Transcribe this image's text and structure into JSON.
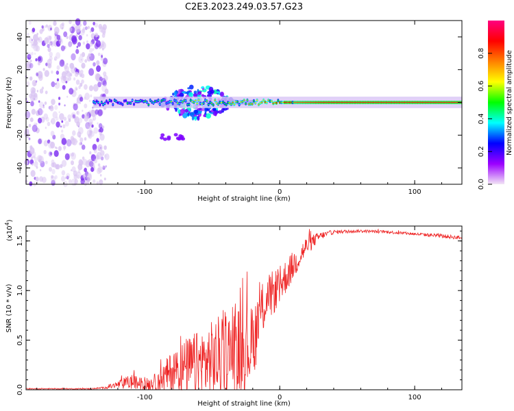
{
  "title": "C2E3.2023.249.03.57.G23",
  "chart_data": [
    {
      "type": "heatmap",
      "name": "spectrogram",
      "xlabel": "Height of straight line (km)",
      "ylabel": "Frequency (Hz)",
      "xlim": [
        -188,
        135
      ],
      "ylim": [
        -50,
        50
      ],
      "xticks": [
        -100,
        0,
        100
      ],
      "xtick_labels": [
        "-100",
        "0",
        "100"
      ],
      "yticks": [
        -40,
        -20,
        0,
        20,
        40
      ],
      "ytick_labels": [
        "-40",
        "-20",
        "0",
        "20",
        "40"
      ],
      "colorbar": {
        "label": "Normalized spectral amplitude",
        "range": [
          0,
          1
        ],
        "ticks": [
          0.0,
          0.2,
          0.4,
          0.6,
          0.8
        ],
        "tick_labels": [
          "0.0",
          "0.2",
          "0.4",
          "0.6",
          "0.8"
        ],
        "colors": [
          "#f2e6f5",
          "#9b00ff",
          "#0000ff",
          "#00ffff",
          "#00ff00",
          "#ffff00",
          "#ff8000",
          "#ff0000",
          "#ff0080"
        ]
      },
      "features": [
        {
          "region": "noise",
          "x_range": [
            -188,
            -128
          ],
          "y_range": [
            -50,
            50
          ],
          "amplitude": 0.1
        },
        {
          "region": "main-trace",
          "x_range": [
            -138,
            135
          ],
          "y_center": 0,
          "amplitude_start": 0.35,
          "amplitude_end": 0.85
        },
        {
          "region": "spread",
          "x_range": [
            -90,
            -20
          ],
          "y_range": [
            -12,
            10
          ],
          "amplitude": 0.2
        },
        {
          "region": "secondary-blob",
          "x_range": [
            -88,
            -70
          ],
          "y_center": -21,
          "amplitude": 0.15
        }
      ]
    },
    {
      "type": "line",
      "name": "snr",
      "xlabel": "Height of straight line (km)",
      "ylabel": "SNR (10 * v/v)",
      "scale_label": "(x10",
      "scale_exp": "4",
      "scale_close": ")",
      "xlim": [
        -188,
        135
      ],
      "ylim": [
        0,
        1.65
      ],
      "xticks": [
        -100,
        0,
        100
      ],
      "xtick_labels": [
        "-100",
        "0",
        "100"
      ],
      "yticks": [
        0.0,
        0.5,
        1.0,
        1.5
      ],
      "ytick_labels": [
        "0.0",
        "0.5",
        "1.0",
        "1.5"
      ],
      "color": "#ee2222",
      "envelope_x": [
        -188,
        -140,
        -130,
        -120,
        -110,
        -100,
        -90,
        -80,
        -70,
        -60,
        -50,
        -40,
        -30,
        -20,
        -15,
        -10,
        0,
        10,
        20,
        30,
        40,
        60,
        80,
        100,
        120,
        135
      ],
      "envelope_base": [
        0.01,
        0.01,
        0.02,
        0.05,
        0.08,
        0.05,
        0.08,
        0.18,
        0.22,
        0.25,
        0.3,
        0.35,
        0.4,
        0.45,
        0.75,
        0.9,
        1.05,
        1.25,
        1.45,
        1.55,
        1.59,
        1.6,
        1.59,
        1.57,
        1.55,
        1.53
      ],
      "envelope_noise": [
        0.005,
        0.005,
        0.01,
        0.04,
        0.08,
        0.06,
        0.1,
        0.22,
        0.3,
        0.35,
        0.4,
        0.45,
        0.45,
        0.4,
        0.3,
        0.25,
        0.2,
        0.15,
        0.1,
        0.04,
        0.02,
        0.015,
        0.015,
        0.015,
        0.02,
        0.02
      ]
    }
  ]
}
